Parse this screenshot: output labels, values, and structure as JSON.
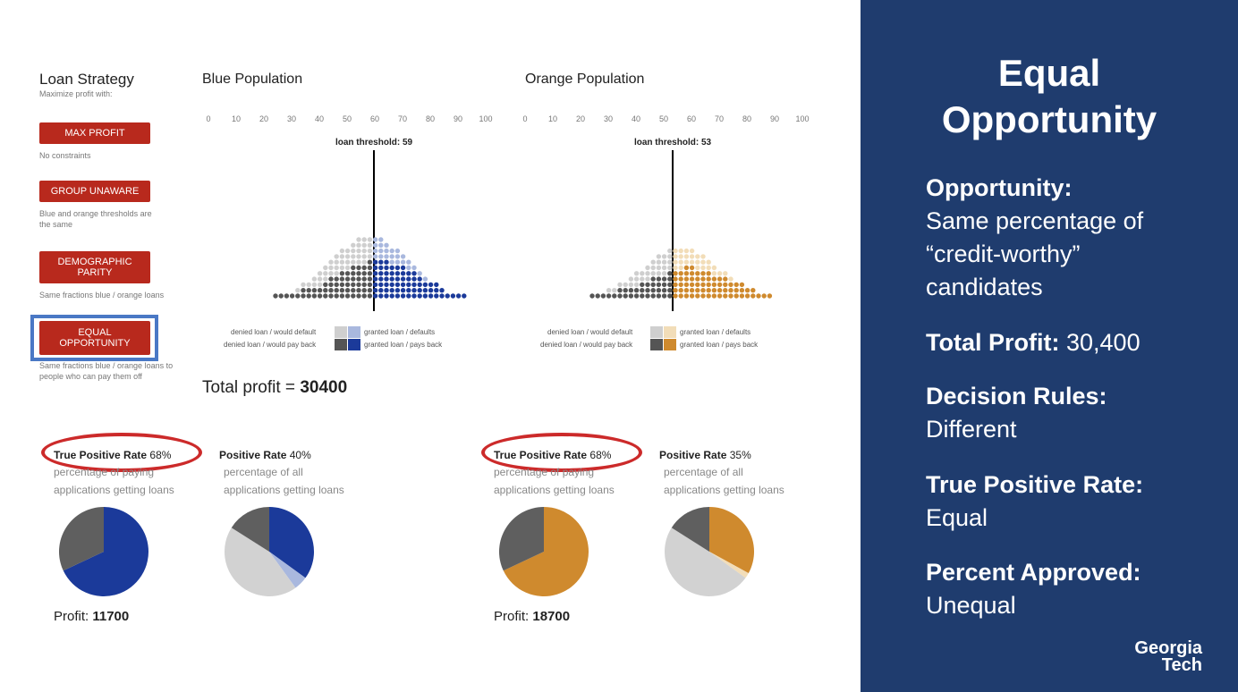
{
  "strategy": {
    "title": "Loan Strategy",
    "subtitle": "Maximize profit with:",
    "buttons": [
      {
        "label": "MAX PROFIT",
        "desc": "No constraints"
      },
      {
        "label": "GROUP UNAWARE",
        "desc": "Blue and orange thresholds are the same"
      },
      {
        "label": "DEMOGRAPHIC PARITY",
        "desc": "Same fractions blue / orange loans"
      },
      {
        "label": "EQUAL OPPORTUNITY",
        "desc": "Same fractions blue / orange loans to people who can pay them off"
      }
    ],
    "selected": "EQUAL OPPORTUNITY"
  },
  "populations": [
    {
      "title": "Blue Population",
      "threshold_label": "loan threshold: 59",
      "threshold": 59,
      "legend": {
        "denied_default": "denied loan / would default",
        "denied_payback": "denied loan / would pay back",
        "granted_default": "granted loan / defaults",
        "granted_payback": "granted loan / pays back"
      },
      "colors": {
        "granted_payback": "#1b3a9a",
        "granted_default": "#a9b8de",
        "denied_payback": "#555555",
        "denied_default": "#cfcfcf"
      }
    },
    {
      "title": "Orange Population",
      "threshold_label": "loan threshold: 53",
      "threshold": 53,
      "legend": {
        "denied_default": "denied loan / would default",
        "denied_payback": "denied loan / would pay back",
        "granted_default": "granted loan / defaults",
        "granted_payback": "granted loan / pays back"
      },
      "colors": {
        "granted_payback": "#cf8a2e",
        "granted_default": "#f2ddb8",
        "denied_payback": "#555555",
        "denied_default": "#cfcfcf"
      }
    }
  ],
  "axis_ticks": [
    "0",
    "10",
    "20",
    "30",
    "40",
    "50",
    "60",
    "70",
    "80",
    "90",
    "100"
  ],
  "total_profit": {
    "label": "Total profit = ",
    "value": "30400"
  },
  "rates": {
    "blue": {
      "tpr_label": "True Positive Rate",
      "tpr_value": "68%",
      "tpr_desc1": "percentage of paying",
      "tpr_desc2": "applications getting loans",
      "pr_label": "Positive Rate",
      "pr_value": "40%",
      "pr_desc1": "percentage of all",
      "pr_desc2": "applications getting loans",
      "profit_label": "Profit: ",
      "profit_value": "11700"
    },
    "orange": {
      "tpr_label": "True Positive Rate",
      "tpr_value": "68%",
      "tpr_desc1": "percentage of paying",
      "tpr_desc2": "applications getting loans",
      "pr_label": "Positive Rate",
      "pr_value": "35%",
      "pr_desc1": "percentage of all",
      "pr_desc2": "applications getting loans",
      "profit_label": "Profit: ",
      "profit_value": "18700"
    }
  },
  "chart_data": [
    {
      "type": "pie",
      "name": "blue-tpr",
      "values": [
        0.68,
        0.32
      ],
      "labels": [
        "granted / pays back",
        "denied / would pay back"
      ],
      "colors": [
        "#1b3a9a",
        "#5f5f5f"
      ]
    },
    {
      "type": "pie",
      "name": "blue-pr",
      "values": [
        0.35,
        0.05,
        0.44,
        0.16
      ],
      "labels": [
        "granted / pays back",
        "granted / defaults",
        "denied / would default",
        "denied / would pay back"
      ],
      "colors": [
        "#1b3a9a",
        "#a9b8de",
        "#d2d2d2",
        "#5f5f5f"
      ]
    },
    {
      "type": "pie",
      "name": "orange-tpr",
      "values": [
        0.68,
        0.32
      ],
      "labels": [
        "granted / pays back",
        "denied / would pay back"
      ],
      "colors": [
        "#cf8a2e",
        "#5f5f5f"
      ]
    },
    {
      "type": "pie",
      "name": "orange-pr",
      "values": [
        0.33,
        0.02,
        0.49,
        0.16
      ],
      "labels": [
        "granted / pays back",
        "granted / defaults",
        "denied / would default",
        "denied / would pay back"
      ],
      "colors": [
        "#cf8a2e",
        "#f2ddb8",
        "#d2d2d2",
        "#5f5f5f"
      ]
    }
  ],
  "side_panel": {
    "title_line1": "Equal",
    "title_line2": "Opportunity",
    "items": [
      {
        "label": "Opportunity:",
        "text": "Same percentage of “credit-worthy” candidates"
      },
      {
        "label": "Total Profit:",
        "text": "30,400"
      },
      {
        "label": "Decision Rules:",
        "text": "Different"
      },
      {
        "label": "True Positive Rate:",
        "text": "Equal"
      },
      {
        "label": "Percent Approved:",
        "text": "Unequal"
      }
    ],
    "logo_line1": "Georgia",
    "logo_line2": "Tech",
    "background": "#1f3c6e"
  }
}
